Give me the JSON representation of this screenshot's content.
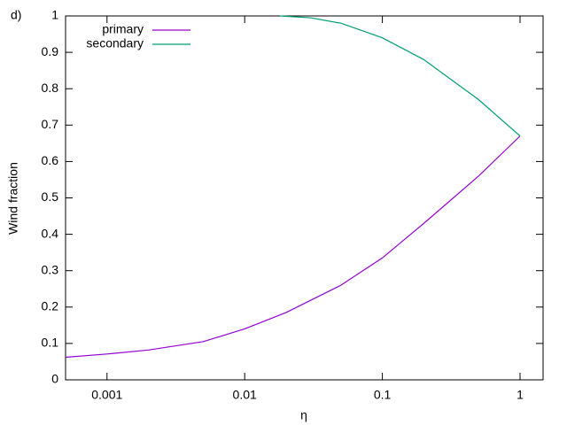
{
  "chart_data": {
    "type": "line",
    "panel_label": "d)",
    "x_label": "η",
    "y_label": "Wind fraction",
    "xlog": true,
    "xlim": [
      0.0005,
      1.47
    ],
    "xticks": [
      0.001,
      0.01,
      0.1,
      1
    ],
    "ylim": [
      0,
      1
    ],
    "yticks": [
      0,
      0.1,
      0.2,
      0.3,
      0.4,
      0.5,
      0.6,
      0.7,
      0.8,
      0.9,
      1
    ],
    "legend": "top-left",
    "series": [
      {
        "name": "primary",
        "color": "#9400d3",
        "x": [
          0.0005,
          0.001,
          0.002,
          0.005,
          0.01,
          0.02,
          0.05,
          0.1,
          0.2,
          0.5,
          1
        ],
        "values": [
          0.062,
          0.071,
          0.082,
          0.105,
          0.14,
          0.185,
          0.26,
          0.335,
          0.43,
          0.56,
          0.67
        ]
      },
      {
        "name": "secondary",
        "color": "#009e73",
        "x": [
          0.018,
          0.03,
          0.05,
          0.1,
          0.2,
          0.5,
          1
        ],
        "values": [
          1.0,
          0.995,
          0.98,
          0.94,
          0.88,
          0.77,
          0.67
        ]
      }
    ]
  }
}
